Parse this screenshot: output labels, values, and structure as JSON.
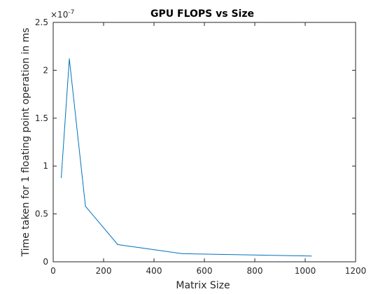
{
  "chart_data": {
    "type": "line",
    "title": "GPU FLOPS vs Size",
    "xlabel": "Matrix Size",
    "ylabel": "Time taken for 1 floating point operation in ms",
    "xlim": [
      0,
      1200
    ],
    "ylim": [
      0,
      2.5e-07
    ],
    "x_ticks": [
      0,
      200,
      400,
      600,
      800,
      1000,
      1200
    ],
    "y_ticks": [
      0,
      5e-08,
      1e-07,
      1.5e-07,
      2e-07,
      2.5e-07
    ],
    "x_tick_labels": [
      "0",
      "200",
      "400",
      "600",
      "800",
      "1000",
      "1200"
    ],
    "y_tick_labels": [
      "0",
      "0.5",
      "1",
      "1.5",
      "2",
      "2.5"
    ],
    "y_exponent_base": "×10",
    "y_exponent_power": "-7",
    "grid": false,
    "series": [
      {
        "color": "#0072BD",
        "x": [
          32,
          64,
          128,
          256,
          512,
          1024
        ],
        "y": [
          8.8e-08,
          2.12e-07,
          5.8e-08,
          1.8e-08,
          8.5e-09,
          6e-09
        ]
      }
    ]
  }
}
